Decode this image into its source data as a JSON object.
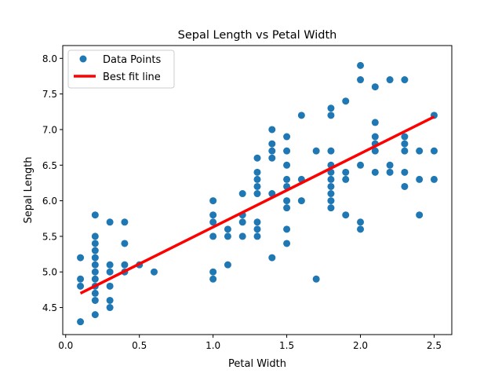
{
  "chart_data": {
    "type": "scatter",
    "title": "Sepal Length vs Petal Width",
    "xlabel": "Petal Width",
    "ylabel": "Sepal Length",
    "xlim": [
      -0.02,
      2.62
    ],
    "ylim": [
      4.12,
      8.18
    ],
    "xticks": [
      0.0,
      0.5,
      1.0,
      1.5,
      2.0,
      2.5
    ],
    "yticks": [
      4.5,
      5.0,
      5.5,
      6.0,
      6.5,
      7.0,
      7.5,
      8.0
    ],
    "grid": false,
    "legend_position": "top-left",
    "series": [
      {
        "name": "Data Points",
        "kind": "scatter",
        "color": "#1f77b4",
        "points": [
          [
            0.1,
            4.3
          ],
          [
            0.1,
            4.8
          ],
          [
            0.1,
            4.9
          ],
          [
            0.1,
            5.2
          ],
          [
            0.2,
            4.4
          ],
          [
            0.2,
            4.6
          ],
          [
            0.2,
            4.7
          ],
          [
            0.2,
            4.8
          ],
          [
            0.2,
            4.9
          ],
          [
            0.2,
            5.0
          ],
          [
            0.2,
            5.1
          ],
          [
            0.2,
            5.2
          ],
          [
            0.2,
            5.3
          ],
          [
            0.2,
            5.4
          ],
          [
            0.2,
            5.5
          ],
          [
            0.2,
            5.8
          ],
          [
            0.3,
            4.5
          ],
          [
            0.3,
            4.6
          ],
          [
            0.3,
            4.8
          ],
          [
            0.3,
            5.0
          ],
          [
            0.3,
            5.1
          ],
          [
            0.3,
            5.7
          ],
          [
            0.4,
            5.0
          ],
          [
            0.4,
            5.1
          ],
          [
            0.4,
            5.4
          ],
          [
            0.4,
            5.7
          ],
          [
            0.5,
            5.1
          ],
          [
            0.6,
            5.0
          ],
          [
            1.0,
            4.9
          ],
          [
            1.0,
            5.0
          ],
          [
            1.0,
            5.5
          ],
          [
            1.0,
            5.7
          ],
          [
            1.0,
            5.8
          ],
          [
            1.0,
            6.0
          ],
          [
            1.1,
            5.1
          ],
          [
            1.1,
            5.5
          ],
          [
            1.1,
            5.6
          ],
          [
            1.2,
            5.5
          ],
          [
            1.2,
            5.7
          ],
          [
            1.2,
            5.8
          ],
          [
            1.2,
            6.1
          ],
          [
            1.3,
            5.5
          ],
          [
            1.3,
            5.6
          ],
          [
            1.3,
            5.7
          ],
          [
            1.3,
            6.1
          ],
          [
            1.3,
            6.2
          ],
          [
            1.3,
            6.3
          ],
          [
            1.3,
            6.4
          ],
          [
            1.3,
            6.6
          ],
          [
            1.4,
            5.2
          ],
          [
            1.4,
            6.1
          ],
          [
            1.4,
            6.6
          ],
          [
            1.4,
            6.7
          ],
          [
            1.4,
            6.8
          ],
          [
            1.4,
            7.0
          ],
          [
            1.5,
            5.4
          ],
          [
            1.5,
            5.6
          ],
          [
            1.5,
            5.9
          ],
          [
            1.5,
            6.0
          ],
          [
            1.5,
            6.2
          ],
          [
            1.5,
            6.3
          ],
          [
            1.5,
            6.5
          ],
          [
            1.5,
            6.7
          ],
          [
            1.5,
            6.9
          ],
          [
            1.6,
            6.0
          ],
          [
            1.6,
            6.3
          ],
          [
            1.6,
            7.2
          ],
          [
            1.7,
            4.9
          ],
          [
            1.7,
            6.7
          ],
          [
            1.8,
            5.9
          ],
          [
            1.8,
            6.0
          ],
          [
            1.8,
            6.1
          ],
          [
            1.8,
            6.2
          ],
          [
            1.8,
            6.3
          ],
          [
            1.8,
            6.4
          ],
          [
            1.8,
            6.5
          ],
          [
            1.8,
            6.7
          ],
          [
            1.8,
            7.2
          ],
          [
            1.8,
            7.3
          ],
          [
            1.9,
            5.8
          ],
          [
            1.9,
            6.3
          ],
          [
            1.9,
            6.4
          ],
          [
            1.9,
            7.4
          ],
          [
            2.0,
            5.6
          ],
          [
            2.0,
            5.7
          ],
          [
            2.0,
            6.5
          ],
          [
            2.0,
            7.7
          ],
          [
            2.0,
            7.9
          ],
          [
            2.1,
            6.4
          ],
          [
            2.1,
            6.7
          ],
          [
            2.1,
            6.8
          ],
          [
            2.1,
            6.9
          ],
          [
            2.1,
            7.1
          ],
          [
            2.1,
            7.6
          ],
          [
            2.2,
            6.4
          ],
          [
            2.2,
            6.5
          ],
          [
            2.2,
            7.7
          ],
          [
            2.3,
            6.2
          ],
          [
            2.3,
            6.4
          ],
          [
            2.3,
            6.7
          ],
          [
            2.3,
            6.8
          ],
          [
            2.3,
            6.9
          ],
          [
            2.3,
            7.7
          ],
          [
            2.4,
            5.8
          ],
          [
            2.4,
            6.3
          ],
          [
            2.4,
            6.7
          ],
          [
            2.5,
            6.3
          ],
          [
            2.5,
            6.7
          ],
          [
            2.5,
            7.2
          ]
        ]
      },
      {
        "name": "Best fit line",
        "kind": "line",
        "color": "#ff0000",
        "points": [
          [
            0.1,
            4.7
          ],
          [
            2.5,
            7.18
          ]
        ]
      }
    ]
  }
}
